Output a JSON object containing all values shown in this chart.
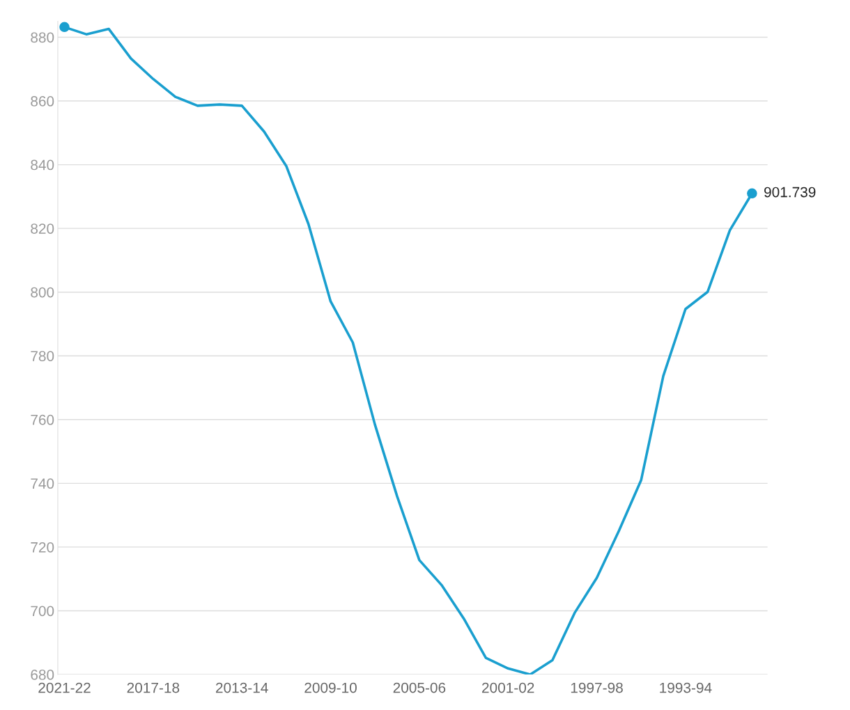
{
  "chart_data": {
    "type": "line",
    "categories": [
      "2021-22",
      null,
      null,
      null,
      "2017-18",
      null,
      null,
      null,
      "2013-14",
      null,
      null,
      null,
      "2009-10",
      null,
      null,
      null,
      "2005-06",
      null,
      null,
      null,
      "2001-02",
      null,
      null,
      null,
      "1997-98",
      null,
      null,
      null,
      "1993-94",
      null,
      null,
      null
    ],
    "series": [
      {
        "color": "#1a9fcf",
        "values": [
          883.2,
          880.9,
          882.6,
          873.3,
          866.9,
          861.3,
          858.5,
          858.9,
          858.5,
          850.4,
          839.6,
          821.4,
          797.1,
          784.2,
          758.4,
          735.9,
          715.9,
          708.1,
          697.6,
          685.2,
          681.9,
          680.0,
          684.5,
          699.3,
          710.3,
          725.1,
          741.0,
          773.7,
          794.7,
          800.1,
          819.4,
          831.0
        ]
      },
      {
        "type": "scatter",
        "color": "#1a9fcf",
        "values": [
          883.2,
          null,
          null,
          null,
          null,
          null,
          null,
          null,
          null,
          null,
          null,
          null,
          null,
          null,
          null,
          null,
          null,
          null,
          null,
          null,
          null,
          null,
          null,
          null,
          null,
          null,
          null,
          null,
          null,
          null,
          null,
          831.0
        ]
      }
    ],
    "annotations": [
      "901.739"
    ],
    "ylim": [
      680,
      885
    ],
    "yticks": [
      680,
      700,
      720,
      740,
      760,
      780,
      800,
      820,
      840,
      860,
      880
    ],
    "grid": "y",
    "legend": false
  }
}
